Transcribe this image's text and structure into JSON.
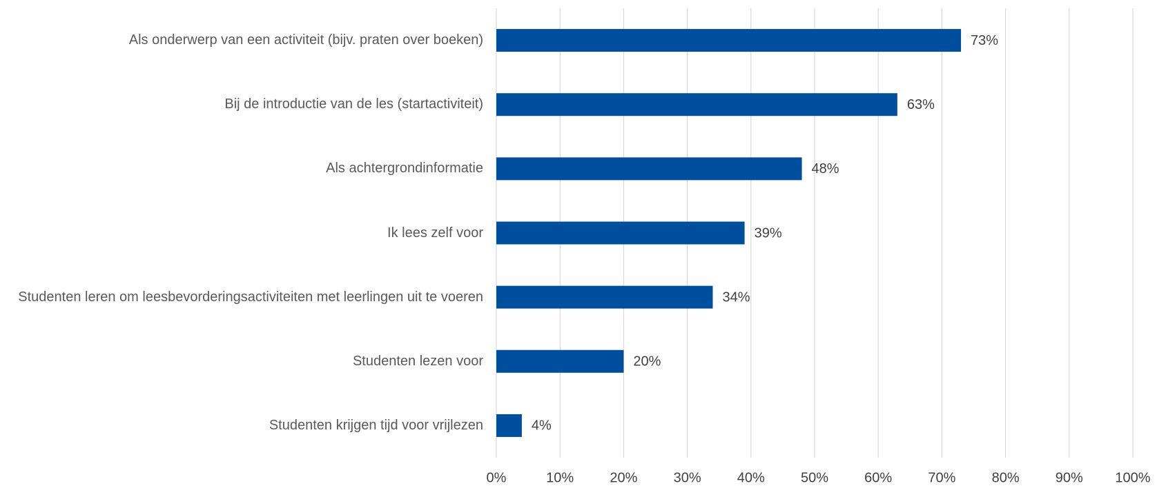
{
  "chart_data": {
    "type": "bar",
    "orientation": "horizontal",
    "categories": [
      "Als onderwerp van een activiteit (bijv. praten over boeken)",
      "Bij de introductie van de les (startactiviteit)",
      "Als achtergrondinformatie",
      "Ik lees zelf voor",
      "Studenten leren om leesbevorderingsactiviteiten met leerlingen uit te voeren",
      "Studenten lezen voor",
      "Studenten krijgen tijd voor vrijlezen"
    ],
    "values": [
      73,
      63,
      48,
      39,
      34,
      20,
      4
    ],
    "value_labels": [
      "73%",
      "63%",
      "48%",
      "39%",
      "34%",
      "20%",
      "4%"
    ],
    "color": "#004f9f",
    "xlim": [
      0,
      100
    ],
    "xticks": [
      {
        "value": 0,
        "label": "0%"
      },
      {
        "value": 10,
        "label": "10%"
      },
      {
        "value": 20,
        "label": "20%"
      },
      {
        "value": 30,
        "label": "30%"
      },
      {
        "value": 40,
        "label": "40%"
      },
      {
        "value": 50,
        "label": "50%"
      },
      {
        "value": 60,
        "label": "60%"
      },
      {
        "value": 70,
        "label": "70%"
      },
      {
        "value": 80,
        "label": "80%"
      },
      {
        "value": 90,
        "label": "90%"
      },
      {
        "value": 100,
        "label": "100%"
      }
    ],
    "grid": true
  }
}
